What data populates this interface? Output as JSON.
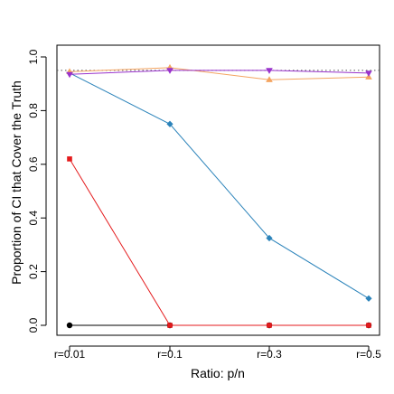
{
  "chart_data": {
    "type": "line",
    "title": "",
    "xlabel": "Ratio: p/n",
    "ylabel": "Proportion of CI that Cover the Truth",
    "categories": [
      "r=0.01",
      "r=0.1",
      "r=0.3",
      "r=0.5"
    ],
    "ylim": [
      0,
      1
    ],
    "y_ticks": [
      "0.0",
      "0.2",
      "0.4",
      "0.6",
      "0.8",
      "1.0"
    ],
    "grid": false,
    "reference_line": {
      "y": 0.95,
      "style": "dotted",
      "color": "#555555"
    },
    "series": [
      {
        "color": "#000000",
        "marker": "circle",
        "values": [
          0.0,
          0.0,
          0.0,
          0.0
        ]
      },
      {
        "color": "#e41a1c",
        "marker": "square",
        "values": [
          0.62,
          0.0,
          0.0,
          0.0
        ]
      },
      {
        "color": "#2b83ba",
        "marker": "diamond",
        "values": [
          0.94,
          0.75,
          0.325,
          0.1
        ]
      },
      {
        "color": "#f4a460",
        "marker": "triangle-up",
        "values": [
          0.945,
          0.96,
          0.915,
          0.925
        ]
      },
      {
        "color": "#9932cc",
        "marker": "triangle-down",
        "values": [
          0.935,
          0.95,
          0.95,
          0.94
        ]
      }
    ]
  }
}
